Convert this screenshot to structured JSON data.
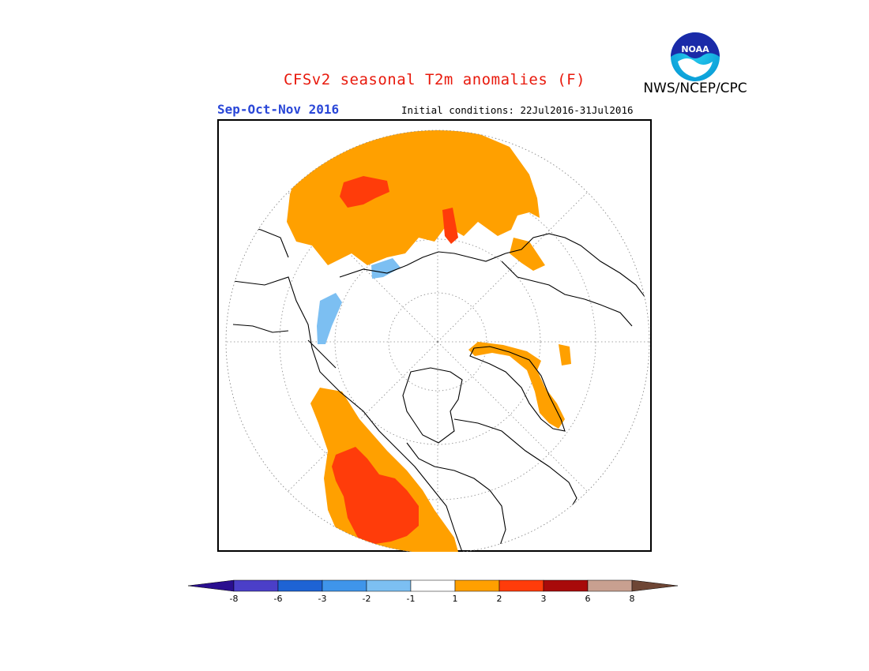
{
  "header": {
    "title": "CFSv2 seasonal T2m anomalies (F)",
    "title_color": "#e8190c",
    "agency": "NWS/NCEP/CPC",
    "season": "Sep-Oct-Nov 2016",
    "season_color": "#2a47d8",
    "initial_conditions": "Initial conditions: 22Jul2016-31Jul2016"
  },
  "logo": {
    "icon": "noaa-logo",
    "text": "NOAA"
  },
  "colorbar": {
    "labels": [
      "-8",
      "-6",
      "-3",
      "-2",
      "-1",
      "1",
      "2",
      "3",
      "6",
      "8"
    ],
    "colors": [
      "#2a0f8f",
      "#4b3fc8",
      "#1e63d4",
      "#3f95ea",
      "#7cbff2",
      "#ffffff",
      "#ffa000",
      "#ff3c0a",
      "#a80a0a",
      "#c8a090",
      "#6e4635"
    ]
  },
  "map": {
    "projection": "north-polar-stereographic",
    "anomaly_colors": {
      "warm1": "#ffa000",
      "warm2": "#ff3c0a",
      "cool1": "#7cbff2"
    }
  }
}
